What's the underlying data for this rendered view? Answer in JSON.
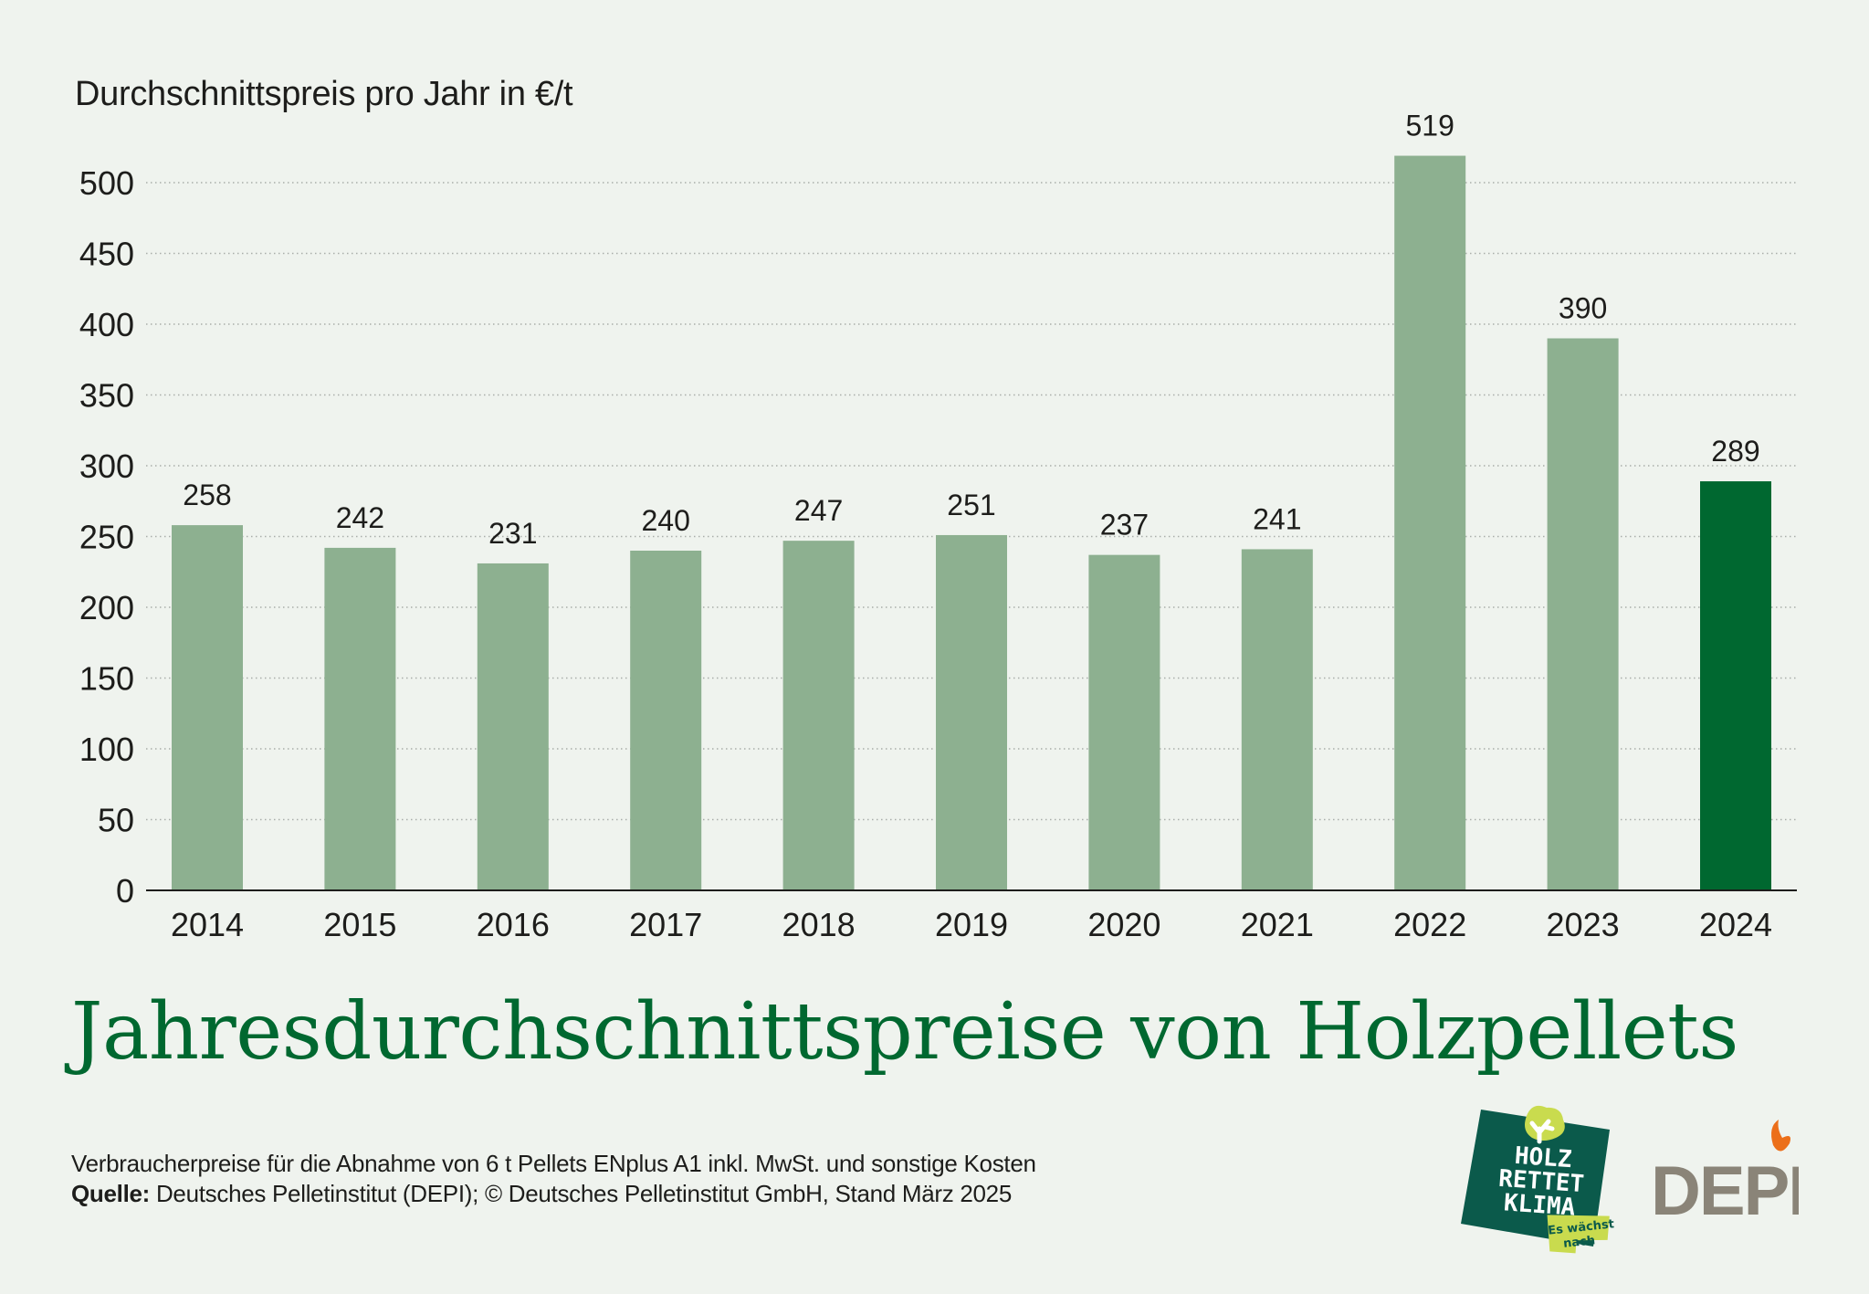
{
  "chart_data": {
    "type": "bar",
    "title": "Jahresdurchschnittspreise von Holzpellets",
    "ylabel": "Durchschnittspreis pro Jahr in €/t",
    "xlabel": "",
    "categories": [
      "2014",
      "2015",
      "2016",
      "2017",
      "2018",
      "2019",
      "2020",
      "2021",
      "2022",
      "2023",
      "2024"
    ],
    "values": [
      258,
      242,
      231,
      240,
      247,
      251,
      237,
      241,
      519,
      390,
      289
    ],
    "data_labels": [
      "258",
      "242",
      "231",
      "240",
      "247",
      "251",
      "237",
      "241",
      "519",
      "390",
      "289"
    ],
    "highlight_category": "2024",
    "ylim": [
      0,
      520
    ],
    "yticks": [
      0,
      50,
      100,
      150,
      200,
      250,
      300,
      350,
      400,
      450,
      500
    ],
    "ytick_labels": [
      "0",
      "50",
      "100",
      "150",
      "200",
      "250",
      "300",
      "350",
      "400",
      "450",
      "500"
    ],
    "grid": "horizontal-dotted",
    "legend": "none",
    "colors": {
      "bar": "#8db090",
      "highlight_bar": "#006830",
      "grid": "#a9aea9",
      "axis": "#1d1d1b",
      "text": "#1d1d1b"
    }
  },
  "footnote": {
    "description": "Verbraucherpreise für die Abnahme von 6 t Pellets ENplus A1 inkl. MwSt. und sonstige Kosten",
    "source_label": "Quelle:",
    "source_text": " Deutsches Pelletinstitut (DEPI); © Deutsches Pelletinstitut GmbH, Stand März 2025"
  },
  "logos": {
    "holz_rettet_klima": {
      "lines": [
        "HOLZ",
        "RETTET",
        "KLIMA"
      ],
      "tagline": [
        "Es wächst",
        "nach"
      ],
      "colors": {
        "background": "#0b5a4b",
        "accent": "#c9db4e",
        "text": "#ffffff"
      }
    },
    "depi": {
      "text": "DEPI",
      "colors": {
        "text": "#8a8478",
        "flame": "#ec6f1a"
      }
    }
  }
}
